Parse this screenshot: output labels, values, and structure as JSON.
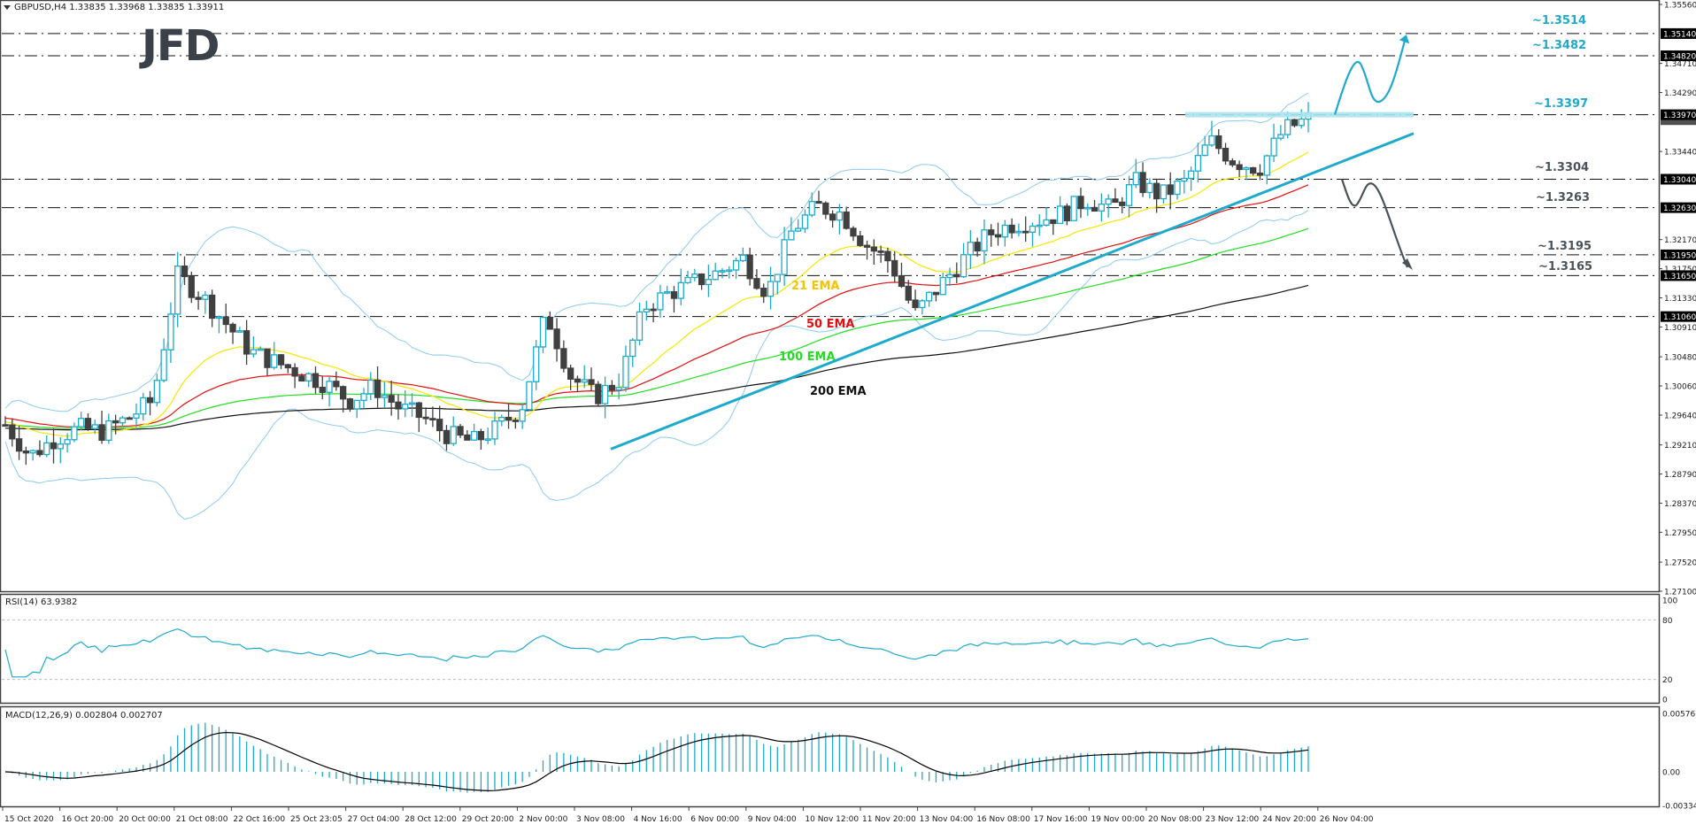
{
  "header": {
    "symbol_line": "GBPUSD,H4  1.33835 1.33968 1.33835 1.33911",
    "menu_icon": "triangle-down-icon"
  },
  "logo": {
    "text": "JFD",
    "color": "#3a4149"
  },
  "colors": {
    "bull_candle": "#1eaacc",
    "bear_candle": "#404040",
    "ema21": "#f5e700",
    "ema50": "#e01010",
    "ema100": "#22dd22",
    "ema200": "#111111",
    "bollinger": "#8ccaf0",
    "trendline": "#1eaacc",
    "bull_scenario": "#1eaacc",
    "bear_scenario": "#4a525a",
    "resistance_zone": "#a8e4ee",
    "rsi_line": "#1eaacc",
    "macd_hist": "#1eaacc",
    "macd_signal": "#000000",
    "axis_text": "#1a1a1a"
  },
  "price_axis": {
    "ticks": [
      "1.35560",
      "1.34710",
      "1.34290",
      "1.33440",
      "1.32170",
      "1.31750",
      "1.31330",
      "1.30910",
      "1.30480",
      "1.30060",
      "1.29640",
      "1.29210",
      "1.28790",
      "1.28370",
      "1.27950",
      "1.27520",
      "1.27100"
    ],
    "highlighted_levels": [
      "1.35140",
      "1.34820",
      "1.33970",
      "1.33040",
      "1.32630",
      "1.31950",
      "1.31650",
      "1.31060"
    ],
    "current_price": "1.33911"
  },
  "annotations": {
    "levels": [
      {
        "label": "~1.3514",
        "color": "#1eaacc"
      },
      {
        "label": "~1.3482",
        "color": "#1eaacc"
      },
      {
        "label": "~1.3397",
        "color": "#1eaacc"
      },
      {
        "label": "~1.3304",
        "color": "#4a525a"
      },
      {
        "label": "~1.3263",
        "color": "#4a525a"
      },
      {
        "label": "~1.3195",
        "color": "#4a525a"
      },
      {
        "label": "~1.3165",
        "color": "#4a525a"
      }
    ],
    "ema_labels": [
      {
        "label": "21 EMA",
        "color": "#f5c400"
      },
      {
        "label": "50 EMA",
        "color": "#e01010"
      },
      {
        "label": "100 EMA",
        "color": "#22dd22"
      },
      {
        "label": "200 EMA",
        "color": "#111111"
      }
    ]
  },
  "rsi": {
    "title": "RSI(14) 63.9382",
    "ticks": [
      "100",
      "80",
      "20",
      "0"
    ]
  },
  "macd": {
    "title": "MACD(12,26,9) 0.002804 0.002707",
    "ticks": [
      "0.00576",
      "0.00",
      "-0.003343"
    ]
  },
  "time_axis": {
    "labels": [
      "15 Oct 2020",
      "16 Oct 20:00",
      "20 Oct 00:00",
      "21 Oct 08:00",
      "22 Oct 16:00",
      "25 Oct 23:05",
      "27 Oct 04:00",
      "28 Oct 12:00",
      "29 Oct 20:00",
      "2 Nov 00:00",
      "3 Nov 08:00",
      "4 Nov 16:00",
      "6 Nov 00:00",
      "9 Nov 04:00",
      "10 Nov 12:00",
      "11 Nov 20:00",
      "13 Nov 04:00",
      "16 Nov 08:00",
      "17 Nov 16:00",
      "19 Nov 00:00",
      "20 Nov 08:00",
      "23 Nov 12:00",
      "24 Nov 20:00",
      "26 Nov 04:00"
    ]
  },
  "chart_data": {
    "type": "candlestick",
    "title": "GBPUSD,H4",
    "ohlc_last": {
      "open": 1.33835,
      "high": 1.33968,
      "low": 1.33835,
      "close": 1.33911
    },
    "xlabel": "",
    "ylabel": "",
    "ylim": [
      1.271,
      1.3556
    ],
    "x_tick_labels": [
      "15 Oct 2020",
      "16 Oct 20:00",
      "20 Oct 00:00",
      "21 Oct 08:00",
      "22 Oct 16:00",
      "25 Oct 23:05",
      "27 Oct 04:00",
      "28 Oct 12:00",
      "29 Oct 20:00",
      "2 Nov 00:00",
      "3 Nov 08:00",
      "4 Nov 16:00",
      "6 Nov 00:00",
      "9 Nov 04:00",
      "10 Nov 12:00",
      "11 Nov 20:00",
      "13 Nov 04:00",
      "16 Nov 08:00",
      "17 Nov 16:00",
      "19 Nov 00:00",
      "20 Nov 08:00",
      "23 Nov 12:00",
      "24 Nov 20:00",
      "26 Nov 04:00"
    ],
    "close_path": [
      1.295,
      1.2905,
      1.293,
      1.2945,
      1.294,
      1.296,
      1.2985,
      1.3165,
      1.3135,
      1.3095,
      1.3055,
      1.304,
      1.3025,
      1.301,
      1.2985,
      1.3005,
      1.2975,
      1.296,
      1.2935,
      1.2925,
      1.2945,
      1.2975,
      1.311,
      1.302,
      1.299,
      1.3015,
      1.312,
      1.314,
      1.3155,
      1.317,
      1.319,
      1.314,
      1.323,
      1.3265,
      1.3255,
      1.321,
      1.3185,
      1.311,
      1.315,
      1.319,
      1.3225,
      1.324,
      1.3245,
      1.3255,
      1.3275,
      1.326,
      1.33,
      1.328,
      1.33,
      1.336,
      1.333,
      1.332,
      1.3375,
      1.3391
    ],
    "indicators": {
      "ema21_end": 1.3345,
      "ema50_end": 1.3295,
      "ema100_end": 1.3228,
      "ema200_end": 1.314
    },
    "levels": [
      1.3514,
      1.3482,
      1.3397,
      1.3304,
      1.3263,
      1.3195,
      1.3165,
      1.3106
    ],
    "trendline": {
      "from": {
        "x": "3 Nov 20:00",
        "y": 1.2915
      },
      "to": {
        "x": "26 Nov 04:00",
        "y": 1.337
      }
    },
    "rsi": {
      "last": 63.9382,
      "ylim": [
        0,
        100
      ],
      "levels": [
        20,
        80
      ]
    },
    "macd": {
      "main": 0.002804,
      "signal": 0.002707,
      "ylim": [
        -0.003343,
        0.00576
      ]
    }
  }
}
